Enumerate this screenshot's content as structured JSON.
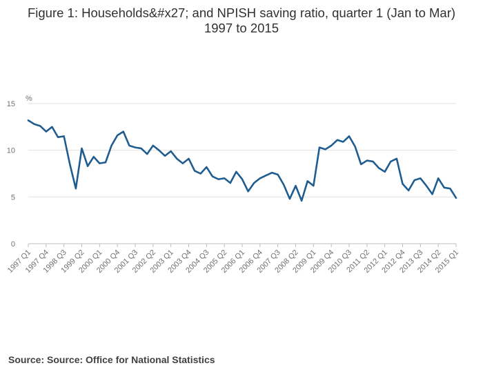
{
  "title_line1": "Figure 1: Households&#x27; and NPISH saving ratio, quarter 1 (Jan to Mar)",
  "title_line2": "1997 to 2015",
  "source": "Source: Source: Office for National Statistics",
  "colors": {
    "line": "#1f5c8f",
    "grid": "#e2e2e3",
    "axis": "#bdbdbd"
  },
  "chart_data": {
    "type": "line",
    "ylabel": "%",
    "ylim": [
      0,
      15
    ],
    "yticks": [
      0,
      5,
      10,
      15
    ],
    "grid": true,
    "tick_labels": [
      "1997 Q1",
      "1997 Q4",
      "1998 Q3",
      "1999 Q2",
      "2000 Q1",
      "2000 Q4",
      "2001 Q3",
      "2002 Q2",
      "2003 Q1",
      "2003 Q4",
      "2004 Q3",
      "2005 Q2",
      "2006 Q1",
      "2006 Q4",
      "2007 Q3",
      "2008 Q2",
      "2009 Q1",
      "2009 Q4",
      "2010 Q3",
      "2011 Q2",
      "2012 Q1",
      "2012 Q4",
      "2013 Q3",
      "2014 Q2",
      "2015 Q1"
    ],
    "x_start": "1997 Q1",
    "x_end": "2015 Q1",
    "values": [
      13.2,
      12.8,
      12.6,
      12.0,
      12.5,
      11.4,
      11.5,
      8.5,
      5.9,
      10.2,
      8.3,
      9.3,
      8.6,
      8.7,
      10.5,
      11.6,
      12.0,
      10.5,
      10.3,
      10.2,
      9.6,
      10.5,
      10.0,
      9.4,
      9.9,
      9.1,
      8.6,
      9.1,
      7.8,
      7.5,
      8.2,
      7.2,
      6.9,
      7.0,
      6.5,
      7.7,
      6.9,
      5.6,
      6.5,
      7.0,
      7.3,
      7.6,
      7.4,
      6.3,
      4.8,
      6.2,
      4.6,
      6.7,
      6.2,
      10.3,
      10.1,
      10.5,
      11.1,
      10.9,
      11.5,
      10.4,
      8.5,
      8.9,
      8.8,
      8.1,
      7.7,
      8.8,
      9.1,
      6.4,
      5.7,
      6.8,
      7.0,
      6.2,
      5.3,
      7.0,
      6.0,
      5.9,
      4.9
    ]
  }
}
